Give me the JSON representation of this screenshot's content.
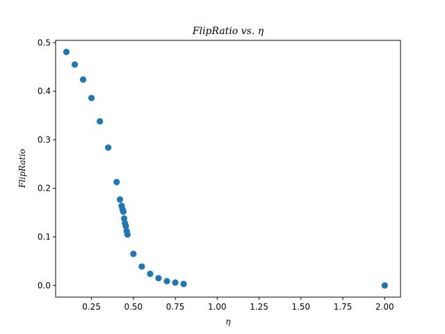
{
  "chart_data": {
    "type": "scatter",
    "title": "FlipRatio vs. η",
    "xlabel": "η",
    "ylabel": "FlipRatio",
    "xlim": [
      0.0359,
      2.0941
    ],
    "ylim": [
      -0.024,
      0.5048
    ],
    "xticks": [
      0.25,
      0.5,
      0.75,
      1.0,
      1.25,
      1.5,
      1.75,
      2.0
    ],
    "xtick_labels": [
      "0.25",
      "0.50",
      "0.75",
      "1.00",
      "1.25",
      "1.50",
      "1.75",
      "2.00"
    ],
    "yticks": [
      0.0,
      0.1,
      0.2,
      0.3,
      0.4,
      0.5
    ],
    "ytick_labels": [
      "0.0",
      "0.1",
      "0.2",
      "0.3",
      "0.4",
      "0.5"
    ],
    "grid": false,
    "marker_color": "#1f77b4",
    "points": [
      {
        "x": 0.1,
        "y": 0.481
      },
      {
        "x": 0.15,
        "y": 0.455
      },
      {
        "x": 0.2,
        "y": 0.424
      },
      {
        "x": 0.25,
        "y": 0.386
      },
      {
        "x": 0.3,
        "y": 0.338
      },
      {
        "x": 0.35,
        "y": 0.284
      },
      {
        "x": 0.4,
        "y": 0.213
      },
      {
        "x": 0.42,
        "y": 0.177
      },
      {
        "x": 0.43,
        "y": 0.164
      },
      {
        "x": 0.435,
        "y": 0.157
      },
      {
        "x": 0.44,
        "y": 0.152
      },
      {
        "x": 0.445,
        "y": 0.138
      },
      {
        "x": 0.45,
        "y": 0.128
      },
      {
        "x": 0.455,
        "y": 0.122
      },
      {
        "x": 0.46,
        "y": 0.112
      },
      {
        "x": 0.465,
        "y": 0.105
      },
      {
        "x": 0.5,
        "y": 0.065
      },
      {
        "x": 0.55,
        "y": 0.039
      },
      {
        "x": 0.6,
        "y": 0.024
      },
      {
        "x": 0.65,
        "y": 0.015
      },
      {
        "x": 0.7,
        "y": 0.009
      },
      {
        "x": 0.75,
        "y": 0.006
      },
      {
        "x": 0.8,
        "y": 0.003
      },
      {
        "x": 2.0,
        "y": 0.0
      }
    ]
  }
}
